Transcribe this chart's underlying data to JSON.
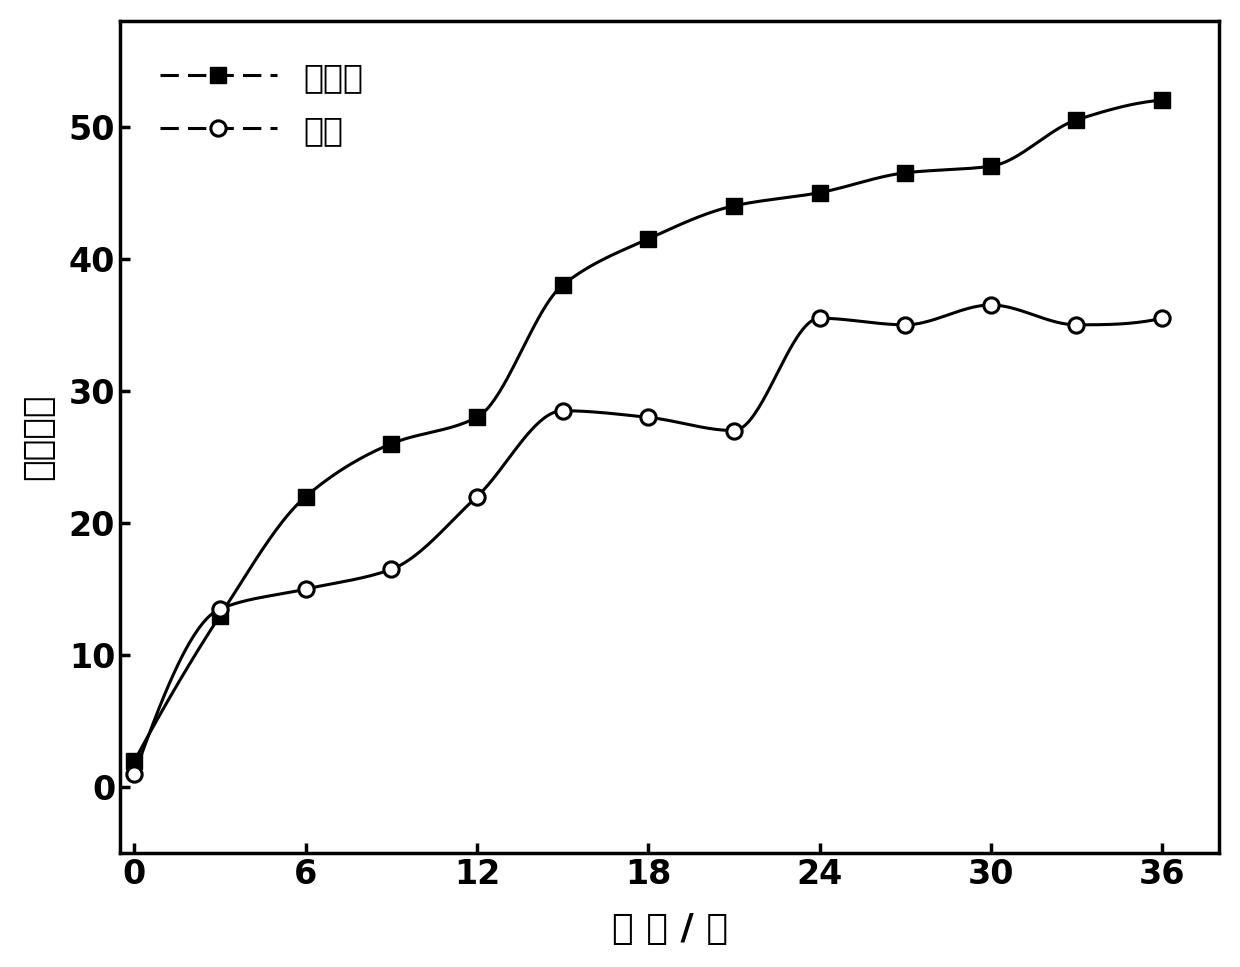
{
  "series1_name": "凤凰城",
  "series2_name": "若羊",
  "series1_x": [
    0,
    3,
    6,
    9,
    12,
    15,
    18,
    21,
    24,
    27,
    30,
    33,
    36
  ],
  "series1_y": [
    2,
    13,
    22,
    26,
    28,
    38,
    41.5,
    44,
    45,
    46.5,
    47,
    50.5,
    52
  ],
  "series2_x": [
    0,
    3,
    6,
    9,
    12,
    15,
    18,
    21,
    24,
    27,
    30,
    33,
    36
  ],
  "series2_y": [
    1,
    13.5,
    15,
    16.5,
    22,
    28.5,
    28,
    27,
    35.5,
    35,
    36.5,
    35,
    35.5
  ],
  "xlabel": "时 间 / 月",
  "ylabel": "黄色指数",
  "xlim": [
    -0.5,
    38
  ],
  "ylim": [
    -5,
    58
  ],
  "xticks": [
    0,
    6,
    12,
    18,
    24,
    30,
    36
  ],
  "yticks": [
    0,
    10,
    20,
    30,
    40,
    50
  ],
  "background_color": "#ffffff",
  "line_color": "#000000",
  "marker1": "s",
  "marker2": "o",
  "markersize1": 11,
  "markersize2": 11,
  "linewidth": 2.2,
  "xlabel_fontsize": 26,
  "ylabel_fontsize": 26,
  "tick_fontsize": 24,
  "legend_fontsize": 24
}
